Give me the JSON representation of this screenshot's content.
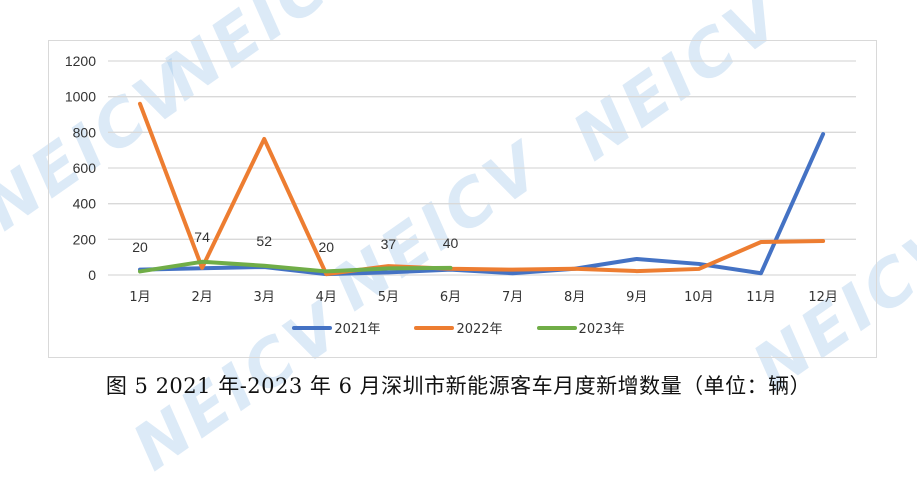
{
  "chart_data": {
    "type": "line",
    "title": "",
    "categories": [
      "1月",
      "2月",
      "3月",
      "4月",
      "5月",
      "6月",
      "7月",
      "8月",
      "9月",
      "10月",
      "11月",
      "12月"
    ],
    "series": [
      {
        "name": "2021年",
        "color": "#4472c4",
        "values": [
          30,
          38,
          45,
          5,
          15,
          30,
          10,
          35,
          90,
          62,
          10,
          790
        ]
      },
      {
        "name": "2022年",
        "color": "#ed7d31",
        "values": [
          960,
          40,
          763,
          5,
          50,
          35,
          30,
          35,
          22,
          34,
          185,
          191
        ]
      },
      {
        "name": "2023年",
        "color": "#70ad47",
        "values": [
          20,
          74,
          52,
          20,
          37,
          40
        ],
        "data_labels": [
          "20",
          "74",
          "52",
          "20",
          "37",
          "40"
        ]
      }
    ],
    "xlabel": "",
    "ylabel": "",
    "ylim": [
      0,
      1200
    ],
    "yticks": [
      0,
      200,
      400,
      600,
      800,
      1000,
      1200
    ],
    "grid": true,
    "legend_position": "bottom"
  },
  "yticks": [
    "0",
    "200",
    "400",
    "600",
    "800",
    "1000",
    "1200"
  ],
  "caption": "图 5 2021 年-2023 年 6 月深圳市新能源客车月度新增数量（单位：辆）",
  "watermark": "NEICV",
  "legend": [
    {
      "label": "2021年",
      "color": "#4472c4"
    },
    {
      "label": "2022年",
      "color": "#ed7d31"
    },
    {
      "label": "2023年",
      "color": "#70ad47"
    }
  ]
}
